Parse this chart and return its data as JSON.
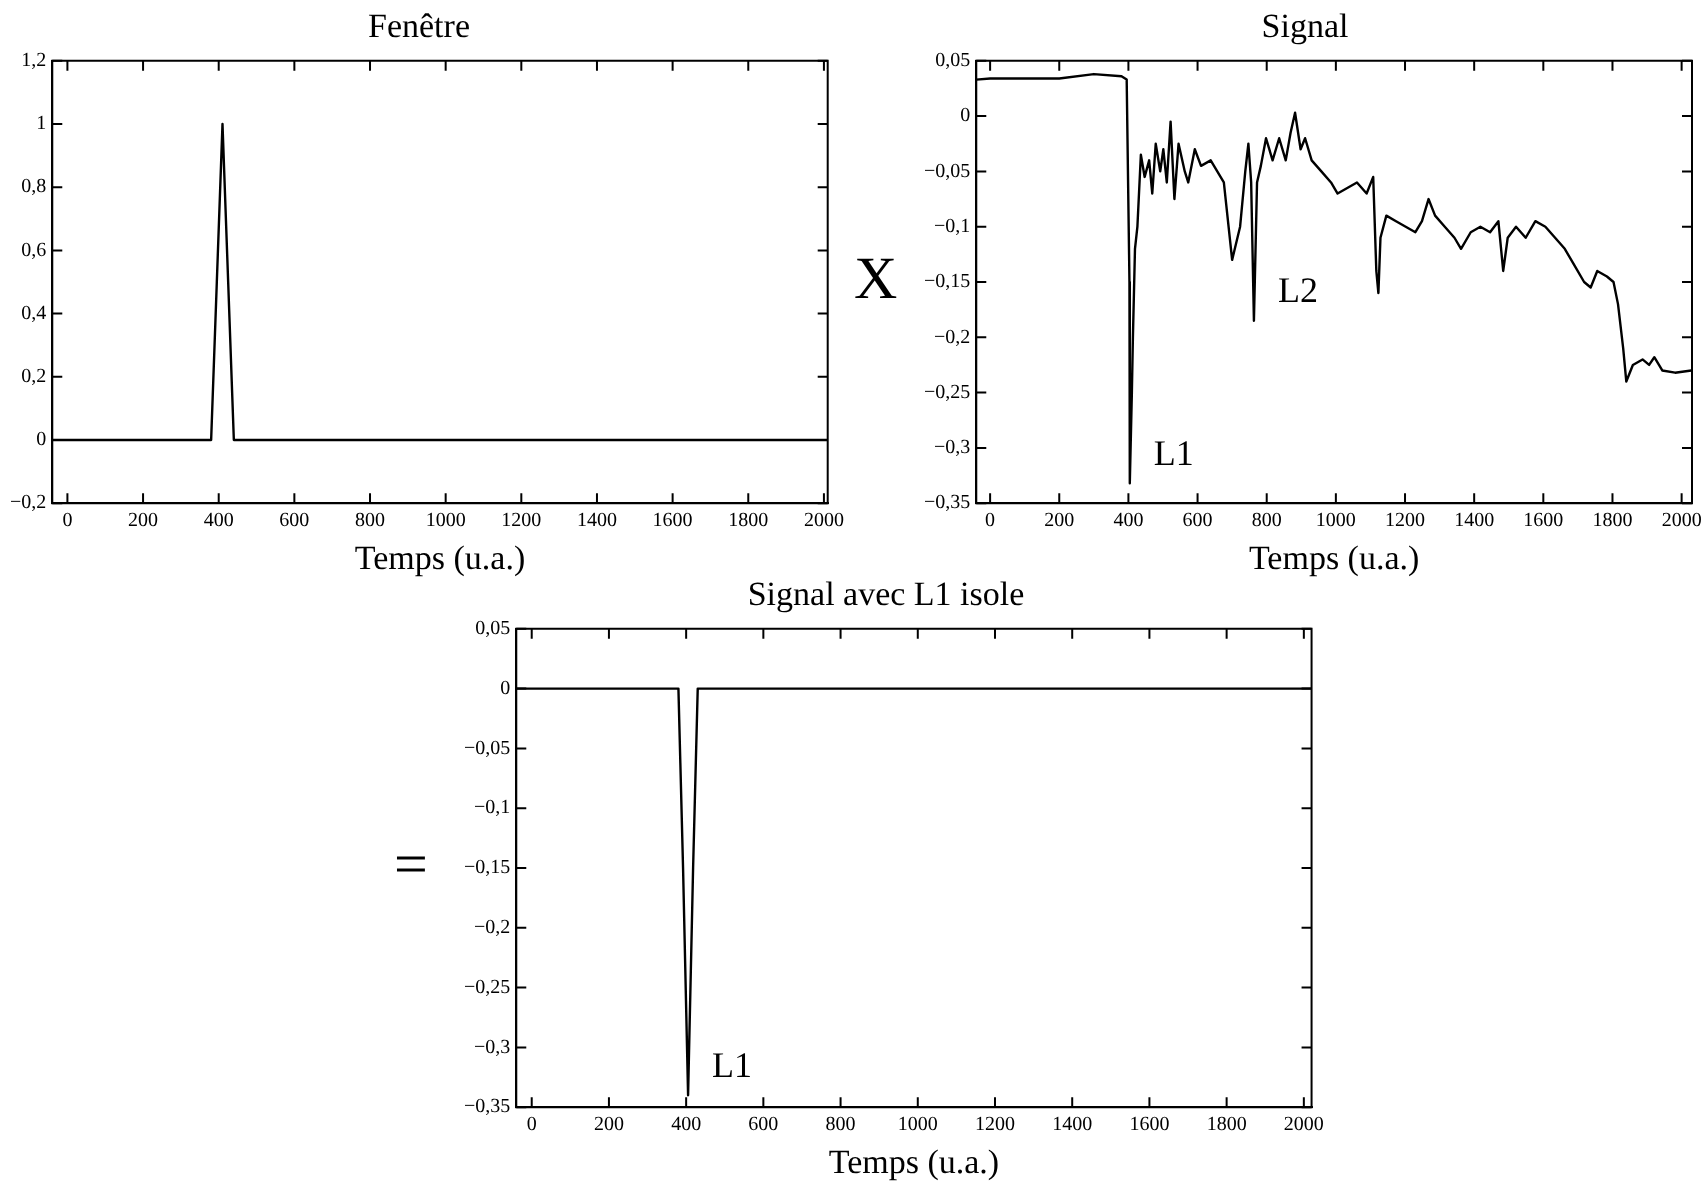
{
  "chart_data": [
    {
      "type": "line",
      "title": "Fenêtre",
      "xlabel": "Temps (u.a.)",
      "grid": false,
      "legend": false,
      "marker": "none",
      "line_style": "solid",
      "xlim": [
        -40,
        2010
      ],
      "xticks": [
        0,
        200,
        400,
        600,
        800,
        1000,
        1200,
        1400,
        1600,
        1800,
        2000
      ],
      "ylim": [
        -0.2,
        1.2
      ],
      "yticks": [
        {
          "value": -0.2,
          "label": "−0,2"
        },
        {
          "value": 0,
          "label": "0"
        },
        {
          "value": 0.2,
          "label": "0,2"
        },
        {
          "value": 0.4,
          "label": "0,4"
        },
        {
          "value": 0.6,
          "label": "0,6"
        },
        {
          "value": 0.8,
          "label": "0,8"
        },
        {
          "value": 1,
          "label": "1"
        },
        {
          "value": 1.2,
          "label": "1,2"
        }
      ],
      "series": [
        {
          "color": "#000000",
          "x": [
            -40,
            0,
            380,
            395,
            410,
            425,
            440,
            2010
          ],
          "values": [
            0,
            0,
            0,
            0.5,
            1,
            0.5,
            0,
            0
          ]
        }
      ]
    },
    {
      "type": "line",
      "title": "Signal",
      "xlabel": "Temps (u.a.)",
      "ylabel": "X",
      "grid": false,
      "legend": false,
      "marker": "none",
      "line_style": "solid",
      "xlim": [
        -40,
        2030
      ],
      "xticks": [
        0,
        200,
        400,
        600,
        800,
        1000,
        1200,
        1400,
        1600,
        1800,
        2000
      ],
      "ylim": [
        -0.35,
        0.05
      ],
      "yticks": [
        {
          "value": -0.35,
          "label": "−0,35"
        },
        {
          "value": -0.3,
          "label": "−0,3"
        },
        {
          "value": -0.25,
          "label": "−0,25"
        },
        {
          "value": -0.2,
          "label": "−0,2"
        },
        {
          "value": -0.15,
          "label": "−0,15"
        },
        {
          "value": -0.1,
          "label": "−0,1"
        },
        {
          "value": -0.05,
          "label": "−0,05"
        },
        {
          "value": 0,
          "label": "0"
        },
        {
          "value": 0.05,
          "label": "0,05"
        }
      ],
      "annotations": [
        {
          "text": "L1",
          "x": 404,
          "y": -0.332
        },
        {
          "text": "L2",
          "x": 763,
          "y": -0.185
        }
      ],
      "series": [
        {
          "color": "#000000",
          "x": [
            -40,
            0,
            200,
            300,
            380,
            395,
            403,
            404,
            410,
            413,
            419,
            426,
            436,
            447,
            460,
            469,
            479,
            492,
            501,
            511,
            522,
            533,
            545,
            563,
            573,
            592,
            610,
            638,
            657,
            676,
            700,
            723,
            738,
            747,
            755,
            763,
            772,
            783,
            798,
            817,
            836,
            855,
            869,
            882,
            898,
            911,
            930,
            958,
            986,
            1005,
            1033,
            1061,
            1089,
            1108,
            1117,
            1123,
            1129,
            1146,
            1174,
            1202,
            1230,
            1249,
            1268,
            1287,
            1315,
            1343,
            1362,
            1390,
            1418,
            1446,
            1470,
            1484,
            1497,
            1521,
            1549,
            1577,
            1606,
            1634,
            1662,
            1690,
            1718,
            1737,
            1756,
            1784,
            1803,
            1816,
            1831,
            1840,
            1859,
            1887,
            1906,
            1921,
            1944,
            1981,
            2028
          ],
          "values": [
            0.033,
            0.034,
            0.034,
            0.038,
            0.036,
            0.033,
            -0.15,
            -0.332,
            -0.25,
            -0.2,
            -0.12,
            -0.1,
            -0.035,
            -0.055,
            -0.04,
            -0.07,
            -0.025,
            -0.05,
            -0.03,
            -0.06,
            -0.005,
            -0.075,
            -0.025,
            -0.05,
            -0.06,
            -0.03,
            -0.045,
            -0.04,
            -0.05,
            -0.06,
            -0.13,
            -0.1,
            -0.05,
            -0.025,
            -0.06,
            -0.185,
            -0.06,
            -0.045,
            -0.02,
            -0.04,
            -0.02,
            -0.04,
            -0.015,
            0.003,
            -0.03,
            -0.02,
            -0.04,
            -0.05,
            -0.06,
            -0.07,
            -0.065,
            -0.06,
            -0.07,
            -0.055,
            -0.14,
            -0.16,
            -0.11,
            -0.09,
            -0.095,
            -0.1,
            -0.105,
            -0.095,
            -0.075,
            -0.09,
            -0.1,
            -0.11,
            -0.12,
            -0.105,
            -0.1,
            -0.105,
            -0.095,
            -0.14,
            -0.11,
            -0.1,
            -0.11,
            -0.095,
            -0.1,
            -0.11,
            -0.12,
            -0.135,
            -0.15,
            -0.155,
            -0.14,
            -0.145,
            -0.15,
            -0.17,
            -0.21,
            -0.24,
            -0.225,
            -0.22,
            -0.225,
            -0.218,
            -0.23,
            -0.232,
            -0.23
          ]
        }
      ]
    },
    {
      "type": "line",
      "title": "Signal avec L1 isole",
      "xlabel": "Temps (u.a.)",
      "ylabel": "=",
      "grid": false,
      "legend": false,
      "marker": "none",
      "line_style": "solid",
      "xlim": [
        -40,
        2020
      ],
      "xticks": [
        0,
        200,
        400,
        600,
        800,
        1000,
        1200,
        1400,
        1600,
        1800,
        2000
      ],
      "ylim": [
        -0.35,
        0.05
      ],
      "yticks": [
        {
          "value": -0.35,
          "label": "−0,35"
        },
        {
          "value": -0.3,
          "label": "−0,3"
        },
        {
          "value": -0.25,
          "label": "−0,25"
        },
        {
          "value": -0.2,
          "label": "−0,2"
        },
        {
          "value": -0.15,
          "label": "−0,15"
        },
        {
          "value": -0.1,
          "label": "−0,1"
        },
        {
          "value": -0.05,
          "label": "−0,05"
        },
        {
          "value": 0,
          "label": "0"
        },
        {
          "value": 0.05,
          "label": "0,05"
        }
      ],
      "annotations": [
        {
          "text": "L1",
          "x": 405,
          "y": -0.34
        }
      ],
      "series": [
        {
          "color": "#000000",
          "x": [
            -40,
            380,
            392,
            405,
            418,
            430,
            2020
          ],
          "values": [
            0,
            0,
            -0.15,
            -0.34,
            -0.15,
            0,
            0
          ]
        }
      ]
    }
  ]
}
